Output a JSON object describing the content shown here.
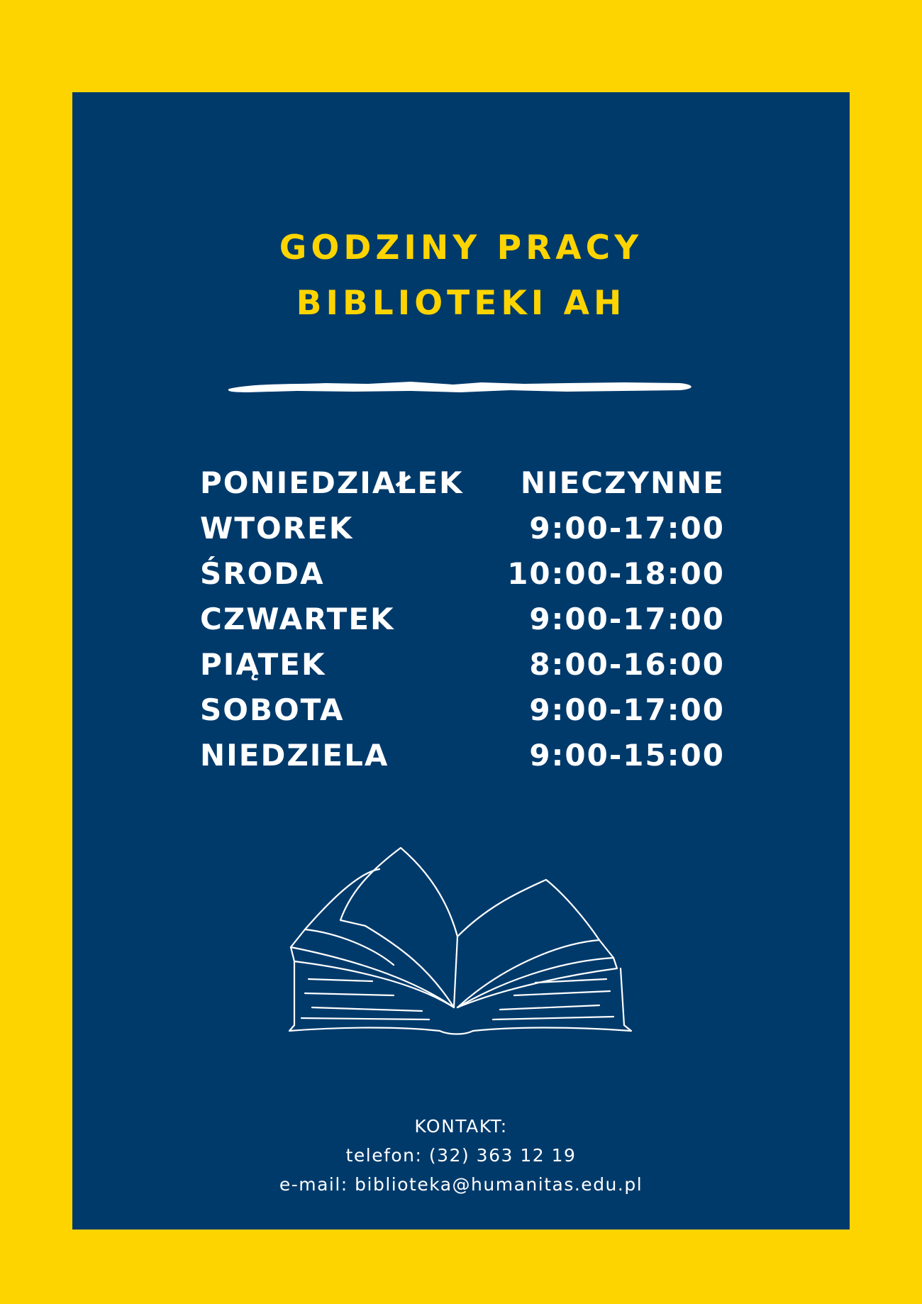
{
  "colors": {
    "background": "#FDD400",
    "panel": "#003A6B",
    "title": "#FDD400",
    "text": "#FFFFFF"
  },
  "title": {
    "line1": "GODZINY PRACY",
    "line2": "BIBLIOTEKI AH"
  },
  "schedule": [
    {
      "day": "PONIEDZIAŁEK",
      "hours": "NIECZYNNE"
    },
    {
      "day": "WTOREK",
      "hours": "9:00-17:00"
    },
    {
      "day": "ŚRODA",
      "hours": "10:00-18:00"
    },
    {
      "day": "CZWARTEK",
      "hours": "9:00-17:00"
    },
    {
      "day": "PIĄTEK",
      "hours": "8:00-16:00"
    },
    {
      "day": "SOBOTA",
      "hours": "9:00-17:00"
    },
    {
      "day": "NIEDZIELA",
      "hours": "9:00-15:00"
    }
  ],
  "illustration": {
    "icon": "open-book-icon"
  },
  "contact": {
    "heading": "KONTAKT:",
    "phone": "telefon: (32) 363 12 19",
    "email": "e-mail: biblioteka@humanitas.edu.pl"
  }
}
